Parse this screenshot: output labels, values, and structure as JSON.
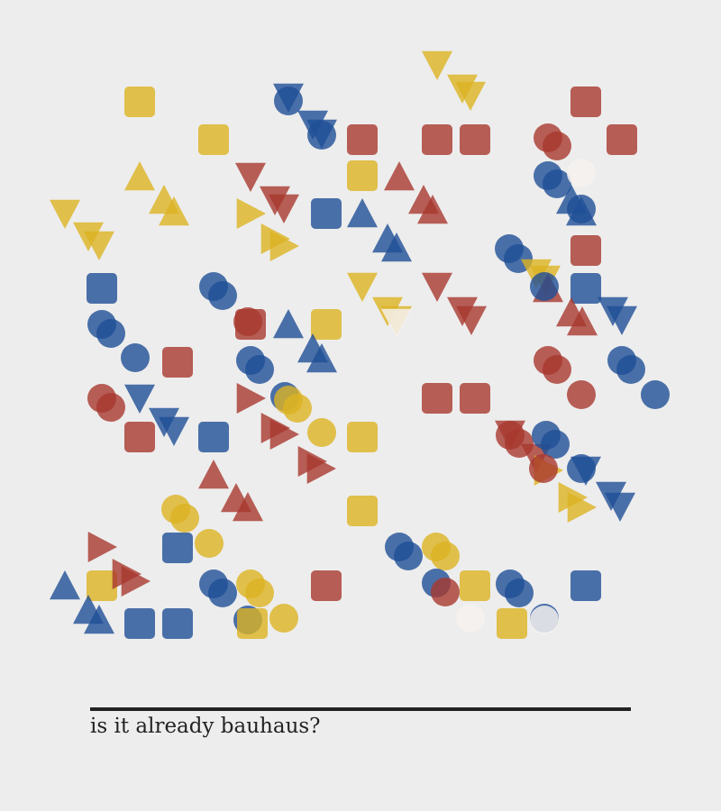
{
  "palette": {
    "red": "#a8382e",
    "blue": "#1f4f96",
    "yellow": "#dcb322",
    "white": "#f4f1ef",
    "background": "#ededed",
    "ink": "#222222"
  },
  "caption": "is it already bauhaus?"
}
